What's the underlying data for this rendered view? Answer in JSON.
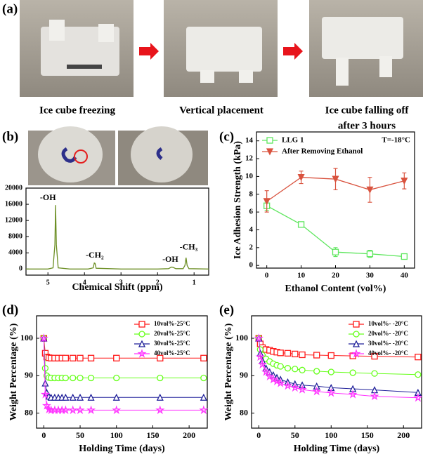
{
  "panel_labels": [
    "(a)",
    "(b)",
    "(c)",
    "(d)",
    "(e)"
  ],
  "photos": {
    "captions": [
      [
        "Ice cube freezing"
      ],
      [
        "Vertical placement"
      ],
      [
        "Ice cube falling off",
        "after 3 hours"
      ]
    ]
  },
  "chart_data": [
    {
      "type": "line",
      "xlabel": "Chemical Shift (ppm)",
      "xlim": [
        5.6,
        0.6
      ],
      "xticks": [
        5,
        4,
        3,
        2,
        1
      ],
      "ylim": [
        -1500,
        20000
      ],
      "yticks": [
        0,
        4000,
        8000,
        12000,
        16000,
        20000
      ],
      "x": [
        5.6,
        5.0,
        4.86,
        4.81,
        4.79,
        4.77,
        4.72,
        4.4,
        3.9,
        3.76,
        3.73,
        3.71,
        3.68,
        3.0,
        2.0,
        1.7,
        1.62,
        1.58,
        1.5,
        1.3,
        1.25,
        1.22,
        1.19,
        1.14,
        0.6
      ],
      "series": [
        {
          "color": "#6b8e23",
          "values": [
            0,
            0,
            300,
            6000,
            15800,
            6000,
            300,
            0,
            0,
            300,
            1500,
            1400,
            200,
            0,
            0,
            100,
            500,
            450,
            100,
            100,
            900,
            2800,
            900,
            100,
            0
          ]
        }
      ],
      "annotations": [
        "-OH",
        "-CH₂",
        "-OH",
        "-CH₃"
      ]
    },
    {
      "type": "line",
      "xlabel": "Ethanol Content (vol%)",
      "ylabel": "Ice Adhesion Strength (kPa)",
      "annotation": "T=-18°C",
      "xlim": [
        -3,
        43
      ],
      "xticks": [
        0,
        10,
        20,
        30,
        40
      ],
      "ylim": [
        -0.3,
        15
      ],
      "yticks": [
        0,
        2,
        4,
        6,
        8,
        10,
        12,
        14
      ],
      "legend": "upper left",
      "x": [
        0,
        10,
        20,
        30,
        40
      ],
      "series": [
        {
          "name": "LLG 1",
          "color": "#5ee65e",
          "marker": "square",
          "values": [
            6.7,
            4.6,
            1.5,
            1.3,
            1.0
          ],
          "errors": [
            0.5,
            0.2,
            0.5,
            0.4,
            0.2
          ]
        },
        {
          "name": "After Removing Ethanol",
          "color": "#d9533f",
          "marker": "tri-down",
          "values": [
            7.2,
            9.9,
            9.7,
            8.5,
            9.5
          ],
          "errors": [
            1.2,
            0.7,
            1.2,
            1.4,
            0.9
          ]
        }
      ]
    },
    {
      "type": "line",
      "xlabel": "Holding Time (days)",
      "ylabel": "Weight Percentage (%)",
      "xlim": [
        -10,
        225
      ],
      "xticks": [
        0,
        50,
        100,
        150,
        200
      ],
      "ylim": [
        76,
        106
      ],
      "yticks": [
        80,
        90,
        100
      ],
      "legend": "upper right",
      "x": [
        0,
        2,
        4,
        7,
        10,
        15,
        20,
        25,
        30,
        40,
        50,
        65,
        100,
        160,
        220
      ],
      "series": [
        {
          "name": "10vol%-25°C",
          "color": "#ff1a1a",
          "marker": "square",
          "values": [
            100,
            96,
            95,
            94.8,
            94.7,
            94.7,
            94.7,
            94.7,
            94.7,
            94.7,
            94.7,
            94.7,
            94.7,
            94.7,
            94.7
          ]
        },
        {
          "name": "20vol%-25°C",
          "color": "#66ff1a",
          "marker": "circle",
          "values": [
            100,
            92,
            90,
            89.5,
            89.4,
            89.4,
            89.4,
            89.4,
            89.4,
            89.4,
            89.4,
            89.4,
            89.4,
            89.4,
            89.4
          ]
        },
        {
          "name": "30vol%-25°C",
          "color": "#1f1f99",
          "marker": "triangle",
          "values": [
            100,
            88,
            85.5,
            84.5,
            84.2,
            84.2,
            84.2,
            84.2,
            84.2,
            84.2,
            84.2,
            84.2,
            84.2,
            84.2,
            84.2
          ]
        },
        {
          "name": "40vol%-25°C",
          "color": "#ff33ff",
          "marker": "star",
          "values": [
            100,
            85,
            82,
            81,
            80.8,
            80.8,
            80.8,
            80.8,
            80.8,
            80.8,
            80.8,
            80.8,
            80.8,
            80.8,
            80.8
          ]
        }
      ]
    },
    {
      "type": "line",
      "xlabel": "Holding Time (days)",
      "ylabel": "Weight Percentage (%)",
      "xlim": [
        -10,
        225
      ],
      "xticks": [
        0,
        50,
        100,
        150,
        200
      ],
      "ylim": [
        76,
        106
      ],
      "yticks": [
        80,
        90,
        100
      ],
      "legend": "upper right",
      "x": [
        0,
        2,
        5,
        10,
        15,
        20,
        25,
        30,
        40,
        50,
        60,
        80,
        100,
        130,
        160,
        220
      ],
      "series": [
        {
          "name": "10vol%- -20°C",
          "color": "#ff1a1a",
          "marker": "square",
          "values": [
            100,
            98.5,
            97.5,
            97,
            96.8,
            96.5,
            96.3,
            96.1,
            96,
            95.8,
            95.6,
            95.5,
            95.4,
            95.3,
            95.2,
            95.0
          ]
        },
        {
          "name": "20vol%- -20°C",
          "color": "#66ff1a",
          "marker": "circle",
          "values": [
            100,
            97,
            95.5,
            94.5,
            93.8,
            93.2,
            92.8,
            92.5,
            92,
            91.8,
            91.5,
            91.2,
            91,
            90.8,
            90.6,
            90.3
          ]
        },
        {
          "name": "30vol%- -20°C",
          "color": "#1f1f99",
          "marker": "triangle",
          "values": [
            100,
            96,
            94,
            92,
            91,
            90.2,
            89.5,
            89,
            88.3,
            87.8,
            87.5,
            87.2,
            86.8,
            86.5,
            86.2,
            85.5
          ]
        },
        {
          "name": "40vol%- -20°C",
          "color": "#ff33ff",
          "marker": "star",
          "values": [
            100,
            95,
            93,
            91,
            89.8,
            89,
            88.5,
            88,
            87.3,
            86.8,
            86.3,
            85.8,
            85.4,
            85,
            84.5,
            84.1
          ]
        }
      ]
    }
  ]
}
